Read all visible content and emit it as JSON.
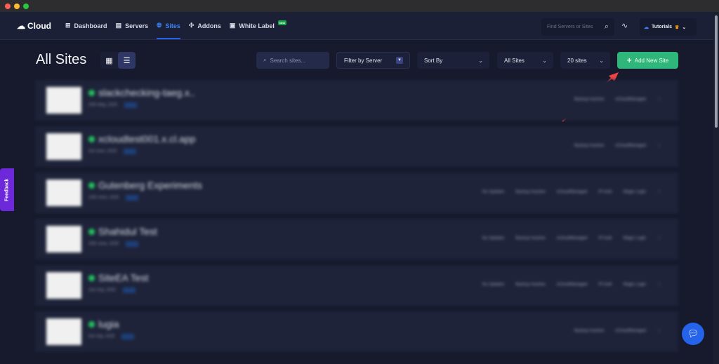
{
  "window": {
    "controls": [
      "#ff5f57",
      "#febc2e",
      "#28c840"
    ]
  },
  "nav": {
    "logo": "Cloud",
    "items": [
      {
        "label": "Dashboard",
        "icon": "dashboard-icon"
      },
      {
        "label": "Servers",
        "icon": "server-icon"
      },
      {
        "label": "Sites",
        "icon": "globe-icon",
        "active": true
      },
      {
        "label": "Addons",
        "icon": "puzzle-icon"
      },
      {
        "label": "White Label",
        "icon": "white-label-icon",
        "badge": "New"
      }
    ],
    "search_placeholder": "Find Servers or Sites",
    "account": "Tutorials"
  },
  "page": {
    "title": "All Sites",
    "search_placeholder": "Search sites...",
    "filter": "Filter by Server",
    "sort": "Sort By",
    "scope": "All Sites",
    "per_page": "20 sites",
    "add_button": "Add New Site"
  },
  "sites": [
    {
      "name": "slackchecking-taeg.x..",
      "date": "20th May, 2025",
      "right": [
        "Backup Inactive",
        "xCloudManaged"
      ]
    },
    {
      "name": "xcloudtest001.x.cl.app",
      "date": "3rd June, 2025",
      "right": [
        "Backup Inactive",
        "xCloudManaged"
      ]
    },
    {
      "name": "Gutenberg Experiments",
      "date": "10th June, 2025",
      "right": [
        "No Updates",
        "Backup Inactive",
        "xCloudManaged",
        "IP Auth",
        "Magic Login"
      ]
    },
    {
      "name": "Shahidul Test",
      "date": "20th June, 2025",
      "right": [
        "No Updates",
        "Backup Inactive",
        "xCloudManaged",
        "IP Auth",
        "Magic Login"
      ]
    },
    {
      "name": "SiteEA Test",
      "date": "2nd July, 2025",
      "right": [
        "No Updates",
        "Backup Inactive",
        "xCloudManaged",
        "IP Auth",
        "Magic Login"
      ]
    },
    {
      "name": "lugia",
      "date": "3rd July, 2025",
      "right": [
        "Backup Inactive",
        "xCloudManaged"
      ]
    }
  ],
  "feedback": "Feedback",
  "colors": {
    "accent": "#2563eb",
    "add": "#2fb67a",
    "status": "#22c55e",
    "arrow": "#ef4444"
  }
}
